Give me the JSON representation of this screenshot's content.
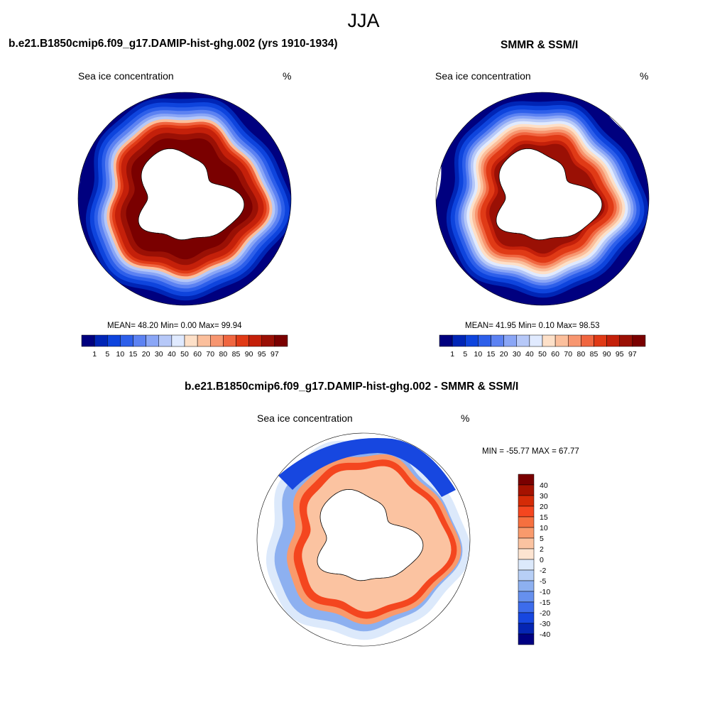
{
  "season_title": "JJA",
  "panels": [
    {
      "title": "b.e21.B1850cmip6.f09_g17.DAMIP-hist-ghg.002 (yrs 1910-1934)",
      "field": "Sea ice concentration",
      "units": "%",
      "stats": "MEAN=  48.20  Min=   0.00  Max=  99.94"
    },
    {
      "title": "SMMR & SSM/I",
      "field": "Sea ice concentration",
      "units": "%",
      "stats": "MEAN=  41.95  Min=   0.10  Max=  98.53"
    },
    {
      "title": "b.e21.B1850cmip6.f09_g17.DAMIP-hist-ghg.002 - SMMR & SSM/I",
      "field": "Sea ice concentration",
      "units": "%",
      "stats": "MIN = -55.77 MAX =  67.77"
    }
  ],
  "concentration_colorbar": {
    "labels": [
      "1",
      "5",
      "10",
      "15",
      "20",
      "30",
      "40",
      "50",
      "60",
      "70",
      "80",
      "85",
      "90",
      "95",
      "97"
    ],
    "colors": [
      "#00007f",
      "#0025b6",
      "#0e44dd",
      "#2d5fea",
      "#5c82f2",
      "#8aa6f6",
      "#b6c8f8",
      "#e0eaff",
      "#fde0c8",
      "#fbbf9c",
      "#f79670",
      "#f06640",
      "#e03a16",
      "#c4200a",
      "#9a1005",
      "#7a0000"
    ]
  },
  "difference_colorbar": {
    "labels": [
      "40",
      "30",
      "20",
      "15",
      "10",
      "5",
      "2",
      "0",
      "-2",
      "-5",
      "-10",
      "-15",
      "-20",
      "-30",
      "-40"
    ],
    "colors": [
      "#7a0000",
      "#a51200",
      "#d42b07",
      "#f4461f",
      "#f6703f",
      "#f99a6c",
      "#fbc3a1",
      "#fde4d1",
      "#dce9fb",
      "#b7cff6",
      "#8db0f0",
      "#6690ee",
      "#3d6cec",
      "#1747e0",
      "#0525b3",
      "#000082"
    ]
  }
}
